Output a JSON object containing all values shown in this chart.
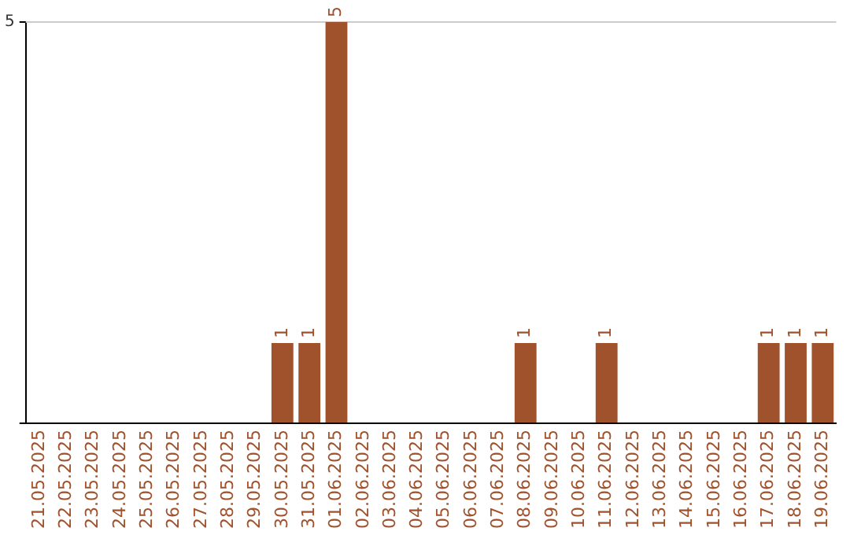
{
  "chart_data": {
    "type": "bar",
    "categories": [
      "21.05.2025",
      "22.05.2025",
      "23.05.2025",
      "24.05.2025",
      "25.05.2025",
      "26.05.2025",
      "27.05.2025",
      "28.05.2025",
      "29.05.2025",
      "30.05.2025",
      "31.05.2025",
      "01.06.2025",
      "02.06.2025",
      "03.06.2025",
      "04.06.2025",
      "05.06.2025",
      "06.06.2025",
      "07.06.2025",
      "08.06.2025",
      "09.06.2025",
      "10.06.2025",
      "11.06.2025",
      "12.06.2025",
      "13.06.2025",
      "14.06.2025",
      "15.06.2025",
      "16.06.2025",
      "17.06.2025",
      "18.06.2025",
      "19.06.2025"
    ],
    "values": [
      0,
      0,
      0,
      0,
      0,
      0,
      0,
      0,
      0,
      1,
      1,
      5,
      0,
      0,
      0,
      0,
      0,
      0,
      1,
      0,
      0,
      1,
      0,
      0,
      0,
      0,
      0,
      1,
      1,
      1
    ],
    "color": "#a0522d",
    "ylim": [
      0,
      5
    ],
    "yticks": [
      {
        "value": 0,
        "label": null
      },
      5
    ],
    "value_labels": [
      null,
      null,
      null,
      null,
      null,
      null,
      null,
      null,
      null,
      "1",
      "1",
      "5",
      null,
      null,
      null,
      null,
      null,
      null,
      "1",
      null,
      null,
      "1",
      null,
      null,
      null,
      null,
      null,
      "1",
      "1",
      "1"
    ],
    "ref_lines": [
      {
        "axis": "y",
        "value": 5,
        "color": "#cccccc"
      }
    ]
  }
}
